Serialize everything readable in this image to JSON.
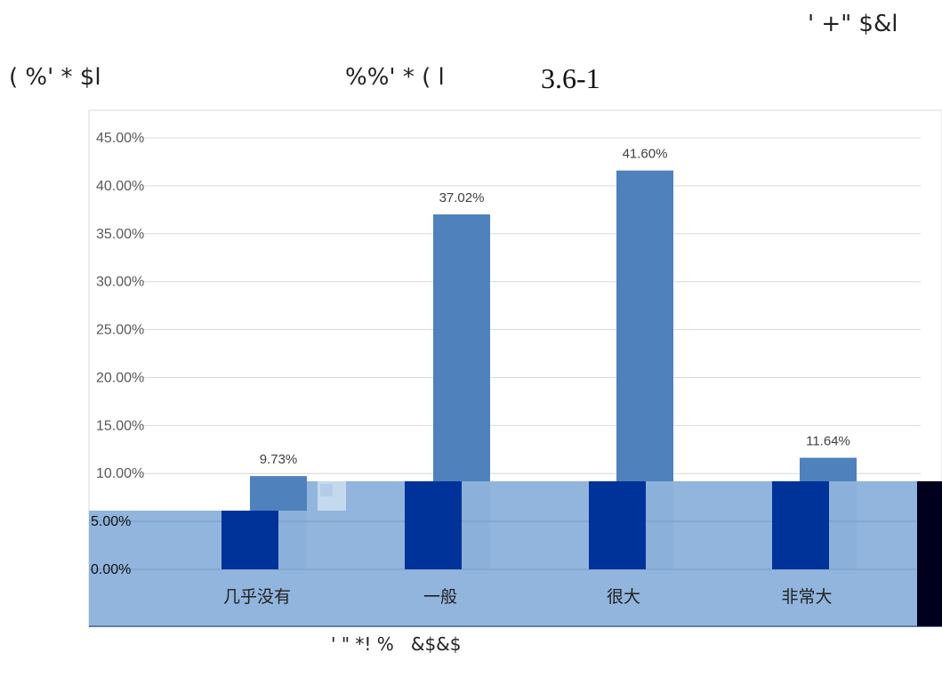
{
  "header": {
    "top_right": "' +\" $&l",
    "left": "( %' * $l",
    "middle": "%%' * ( l",
    "figure_number": "3.6-1"
  },
  "footer": {
    "caption": "' \" *! %   &$&$"
  },
  "colors": {
    "bar_upper": "#4f81bd",
    "bar_lower": "#003399",
    "overlay": "#8db3db",
    "gridline": "#d9d9d9",
    "dark_strip": "#00001e"
  },
  "chart_data": {
    "type": "bar",
    "categories": [
      "几乎没有",
      "一般",
      "很大",
      "非常大"
    ],
    "values": [
      9.73,
      37.02,
      41.6,
      11.64
    ],
    "data_labels": [
      "9.73%",
      "37.02%",
      "41.60%",
      "11.64%"
    ],
    "ylim": [
      0,
      45
    ],
    "yticks": [
      "0.00%",
      "5.00%",
      "10.00%",
      "15.00%",
      "20.00%",
      "25.00%",
      "30.00%",
      "35.00%",
      "40.00%",
      "45.00%"
    ],
    "grid": true,
    "legend": "none",
    "title": "",
    "xlabel": "",
    "ylabel": ""
  }
}
